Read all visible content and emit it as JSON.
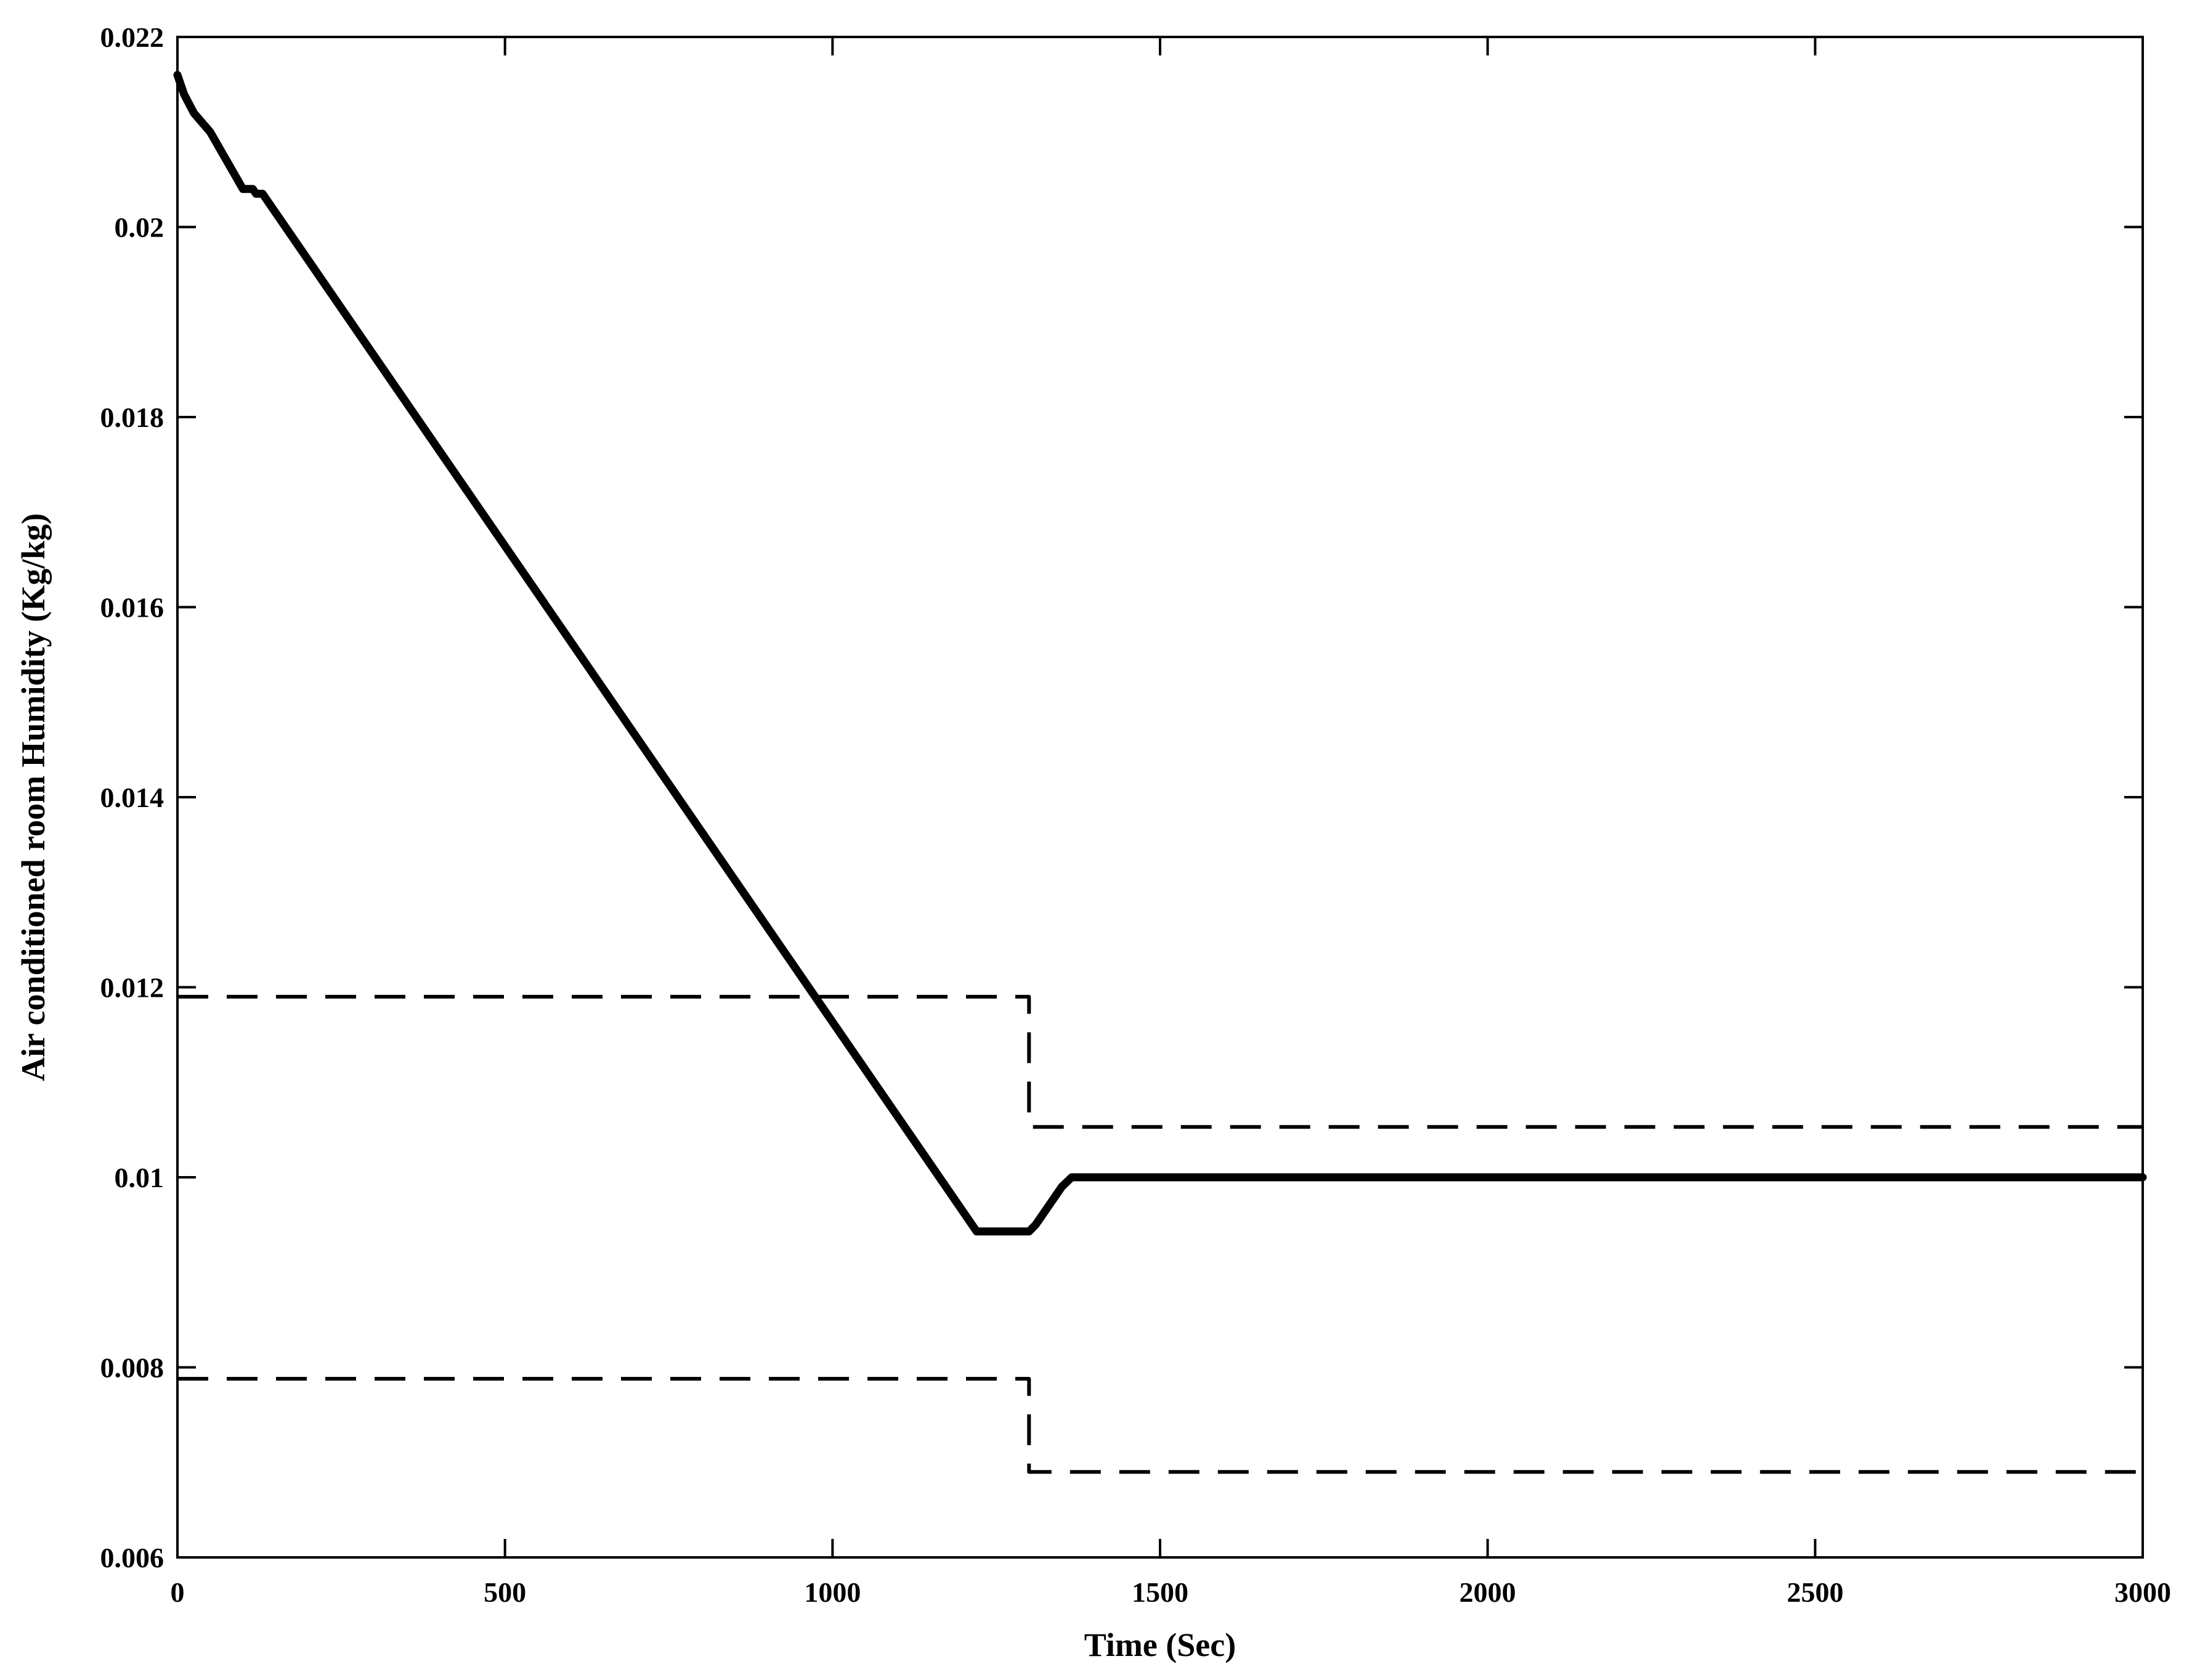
{
  "chart_data": {
    "type": "line",
    "title": "",
    "xlabel": "Time (Sec)",
    "ylabel": "Air conditioned room Humidity (Kg/kg)",
    "xlim": [
      0,
      3000
    ],
    "ylim": [
      0.006,
      0.022
    ],
    "xticks": [
      0,
      500,
      1000,
      1500,
      2000,
      2500,
      3000
    ],
    "xtick_labels": [
      "0",
      "500",
      "1000",
      "1500",
      "2000",
      "2500",
      "3000"
    ],
    "yticks": [
      0.006,
      0.008,
      0.01,
      0.012,
      0.014,
      0.016,
      0.018,
      0.02,
      0.022
    ],
    "ytick_labels": [
      "0.006",
      "0.008",
      "0.01",
      "0.012",
      "0.014",
      "0.016",
      "0.018",
      "0.02",
      "0.022"
    ],
    "grid": false,
    "legend": false,
    "series": [
      {
        "style": "solid",
        "color": "#000000",
        "x": [
          0,
          10,
          25,
          50,
          100,
          115,
          120,
          130,
          1220,
          1230,
          1300,
          1310,
          1350,
          1365,
          3000
        ],
        "y": [
          0.0216,
          0.0214,
          0.0212,
          0.021,
          0.0204,
          0.0204,
          0.02035,
          0.02035,
          0.00943,
          0.00943,
          0.00943,
          0.0095,
          0.0099,
          0.01,
          0.01
        ]
      },
      {
        "style": "dashed",
        "color": "#000000",
        "x": [
          0,
          1300,
          1300,
          3000
        ],
        "y": [
          0.0119,
          0.0119,
          0.01053,
          0.01053
        ]
      },
      {
        "style": "dashed",
        "color": "#000000",
        "x": [
          0,
          1300,
          1300,
          3000
        ],
        "y": [
          0.00788,
          0.00788,
          0.0069,
          0.0069
        ]
      }
    ]
  }
}
